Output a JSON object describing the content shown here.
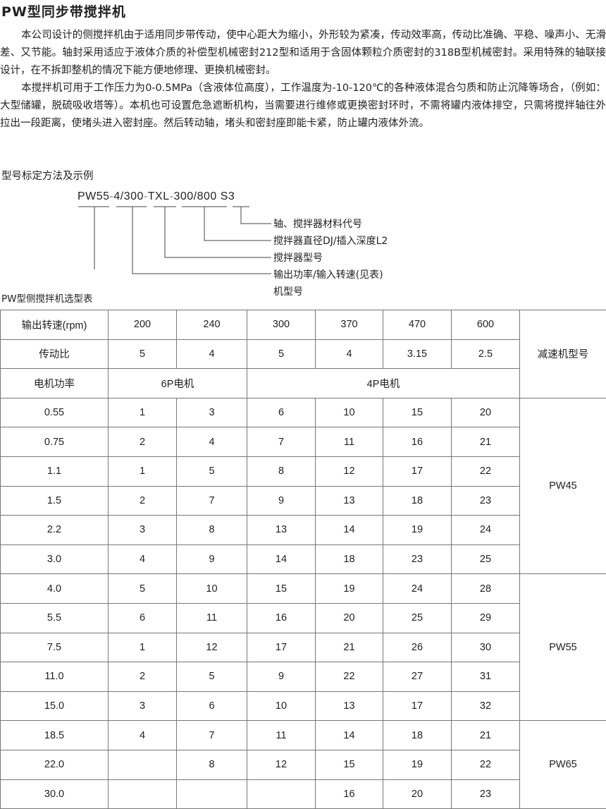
{
  "title": "PW型同步带搅拌机",
  "paragraphs": [
    "本公司设计的侧搅拌机由于适用同步带传动，使中心距大为缩小，外形较为紧凑，传动效率高，传动比准确、平稳、噪声小、无滑差、又节能。轴封采用适应于液体介质的补偿型机械密封212型和适用于含固体颗粒介质密封的318B型机械密封。采用特殊的轴联接设计，在不拆卸整机的情况下能方便地修理、更换机械密封。",
    "本搅拌机可用于工作压力为0-0.5MPa（含液体位高度），工作温度为-10-120℃的各种液体混合匀质和防止沉降等场合，（例如：大型储罐，脱硫吸收塔等）。本机也可设置危急遮断机构，当需要进行维修或更换密封环时，不需将罐内液体排空，只需将搅拌轴往外拉出一段距离，使堵头进入密封座。然后转动轴，堵头和密封座即能卡紧，防止罐内液体外流。"
  ],
  "model_section_label": "型号标定方法及示例",
  "model_code": {
    "parts": [
      "PW55",
      "4/300",
      "TXL",
      "300/800",
      "S3"
    ],
    "separators": [
      "-",
      "-",
      "-",
      " "
    ],
    "labels": [
      "轴、搅拌器材料代号",
      "搅拌器直径DJ/插入深度L2",
      "搅拌器型号",
      "输出功率/输入转速(见表)",
      "机型号"
    ]
  },
  "table_title": "PW型侧搅拌机选型表",
  "table": {
    "speed_label": "输出转速(rpm)",
    "speeds": [
      "200",
      "240",
      "300",
      "370",
      "470",
      "600"
    ],
    "ratio_label": "传动比",
    "ratios": [
      "5",
      "4",
      "5",
      "4",
      "3.15",
      "2.5"
    ],
    "power_label": "电机功率",
    "motor_6p": "6P电机",
    "motor_4p": "4P电机",
    "reducer_label": "减速机型号",
    "rows": [
      {
        "power": "0.55",
        "values": [
          "1",
          "3",
          "6",
          "10",
          "15",
          "20"
        ]
      },
      {
        "power": "0.75",
        "values": [
          "2",
          "4",
          "7",
          "11",
          "16",
          "21"
        ]
      },
      {
        "power": "1.1",
        "values": [
          "1",
          "5",
          "8",
          "12",
          "17",
          "22"
        ]
      },
      {
        "power": "1.5",
        "values": [
          "2",
          "7",
          "9",
          "13",
          "18",
          "23"
        ]
      },
      {
        "power": "2.2",
        "values": [
          "3",
          "8",
          "13",
          "14",
          "19",
          "24"
        ]
      },
      {
        "power": "3.0",
        "values": [
          "4",
          "9",
          "14",
          "18",
          "23",
          "25"
        ]
      },
      {
        "power": "4.0",
        "values": [
          "5",
          "10",
          "15",
          "19",
          "24",
          "28"
        ]
      },
      {
        "power": "5.5",
        "values": [
          "6",
          "11",
          "16",
          "20",
          "25",
          "29"
        ]
      },
      {
        "power": "7.5",
        "values": [
          "1",
          "12",
          "17",
          "21",
          "26",
          "30"
        ]
      },
      {
        "power": "11.0",
        "values": [
          "2",
          "5",
          "9",
          "22",
          "27",
          "31"
        ]
      },
      {
        "power": "15.0",
        "values": [
          "3",
          "6",
          "10",
          "13",
          "17",
          "32"
        ]
      },
      {
        "power": "18.5",
        "values": [
          "4",
          "7",
          "11",
          "14",
          "18",
          "21"
        ]
      },
      {
        "power": "22.0",
        "values": [
          "",
          "8",
          "12",
          "15",
          "19",
          "22"
        ]
      },
      {
        "power": "30.0",
        "values": [
          "",
          "",
          "",
          "16",
          "20",
          "23"
        ]
      }
    ],
    "reducers": [
      {
        "name": "PW45",
        "span": 6
      },
      {
        "name": "PW55",
        "span": 5
      },
      {
        "name": "PW65",
        "span": 3
      }
    ]
  }
}
